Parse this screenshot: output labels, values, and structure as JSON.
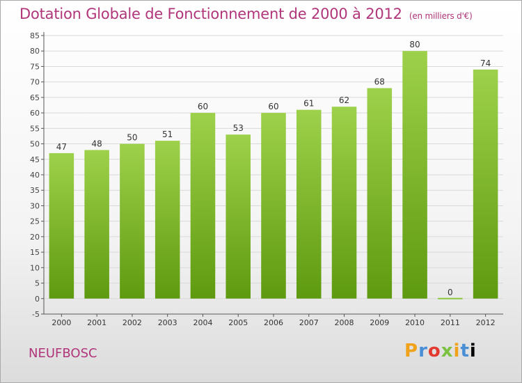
{
  "title": "Dotation Globale de Fonctionnement de 2000 à 2012",
  "unit": "(en milliers d'€)",
  "commune": "NEUFBOSC",
  "brand": [
    "P",
    "r",
    "o",
    "x",
    "i",
    "t",
    "i"
  ],
  "colors": {
    "title": "#b0357a",
    "bar_top": "#9ed14b",
    "bar_bottom": "#5e9a0f",
    "grid": "#d9d9d9",
    "zero_bar": "#8cc63f"
  },
  "chart_data": {
    "type": "bar",
    "categories": [
      "2000",
      "2001",
      "2002",
      "2003",
      "2004",
      "2005",
      "2006",
      "2007",
      "2008",
      "2009",
      "2010",
      "2011",
      "2012"
    ],
    "values": [
      47,
      48,
      50,
      51,
      60,
      53,
      60,
      61,
      62,
      68,
      80,
      0,
      74
    ],
    "data_labels": [
      "47",
      "48",
      "50",
      "51",
      "60",
      "53",
      "60",
      "61",
      "62",
      "68",
      "80",
      "0",
      "74"
    ],
    "ylim": [
      -5,
      85
    ],
    "yticks": [
      -5,
      0,
      5,
      10,
      15,
      20,
      25,
      30,
      35,
      40,
      45,
      50,
      55,
      60,
      65,
      70,
      75,
      80,
      85
    ],
    "grid": true
  }
}
